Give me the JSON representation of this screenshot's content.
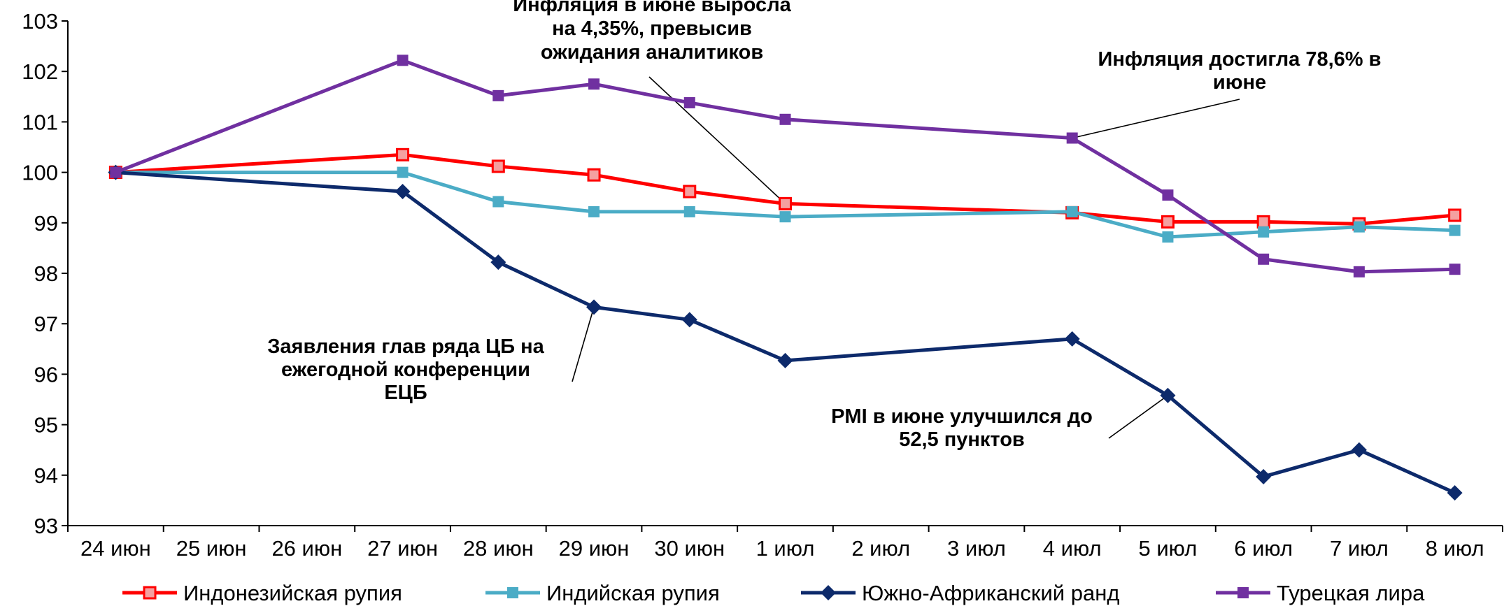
{
  "chart_data": {
    "type": "line",
    "title": "",
    "xlabel": "",
    "ylabel": "",
    "ylim": [
      93,
      103
    ],
    "yticks": [
      93,
      94,
      95,
      96,
      97,
      98,
      99,
      100,
      101,
      102,
      103
    ],
    "grid": false,
    "legend": "bottom",
    "categories": [
      "24 июн",
      "25 июн",
      "26 июн",
      "27 июн",
      "28 июн",
      "29 июн",
      "30 июн",
      "1 июл",
      "2 июл",
      "3 июл",
      "4 июл",
      "5 июл",
      "6 июл",
      "7 июл",
      "8 июл"
    ],
    "series": [
      {
        "name": "Индонезийская рупия",
        "color": "#ff0000",
        "marker": "square-open",
        "values": [
          100,
          null,
          null,
          100.35,
          100.12,
          99.95,
          99.62,
          99.38,
          null,
          null,
          99.2,
          99.02,
          99.02,
          98.98,
          99.15
        ]
      },
      {
        "name": "Индийская рупия",
        "color": "#4bacc6",
        "marker": "square",
        "values": [
          100,
          null,
          null,
          100.0,
          99.42,
          99.22,
          99.22,
          99.12,
          null,
          null,
          99.22,
          98.72,
          98.82,
          98.92,
          98.85
        ]
      },
      {
        "name": "Южно-Африканский ранд",
        "color": "#0d2a6b",
        "marker": "diamond",
        "values": [
          100,
          null,
          null,
          99.62,
          98.22,
          97.33,
          97.08,
          96.27,
          null,
          null,
          96.7,
          95.58,
          93.97,
          94.5,
          93.65
        ]
      },
      {
        "name": "Турецкая лира",
        "color": "#7030a0",
        "marker": "square",
        "values": [
          100,
          null,
          null,
          102.22,
          101.52,
          101.75,
          101.38,
          101.05,
          null,
          null,
          100.68,
          99.55,
          98.28,
          98.03,
          98.08
        ]
      }
    ],
    "annotations": [
      {
        "lines": [
          "Инфляция в июне выросла",
          "на 4,35%, превысив",
          "ожидания аналитиков"
        ],
        "target_series": 0,
        "target_index": 7
      },
      {
        "lines": [
          "Инфляция достигла 78,6% в",
          "июне"
        ],
        "target_series": 3,
        "target_index": 10
      },
      {
        "lines": [
          "Заявления глав ряда ЦБ на",
          "ежегодной конференции",
          "ЕЦБ"
        ],
        "target_series": 2,
        "target_index": 5
      },
      {
        "lines": [
          "PMI в июне улучшился до",
          "52,5 пунктов"
        ],
        "target_series": 2,
        "target_index": 11
      }
    ]
  }
}
